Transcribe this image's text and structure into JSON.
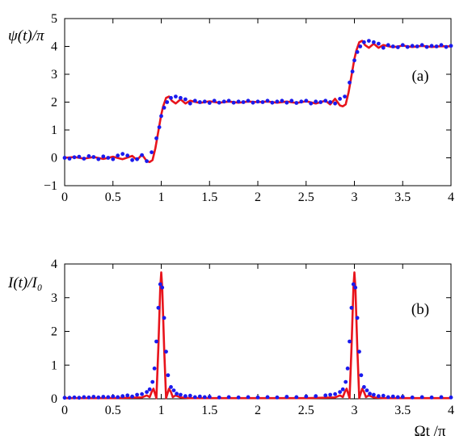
{
  "chart_data": [
    {
      "panel": "a",
      "type": "line",
      "panel_label": "(a)",
      "ylabel": "ψ(t)/π",
      "xlabel": "",
      "xlim": [
        0,
        4
      ],
      "ylim": [
        -1,
        5
      ],
      "xticks": [
        "0",
        "0.5",
        "1",
        "1.5",
        "2",
        "2.5",
        "3",
        "3.5",
        "4"
      ],
      "yticks": [
        "−1",
        "0",
        "1",
        "2",
        "3",
        "4",
        "5"
      ],
      "grid": false,
      "series": [
        {
          "style": "line",
          "color": "#e8141c",
          "x": [
            0,
            0.1,
            0.2,
            0.3,
            0.4,
            0.5,
            0.6,
            0.7,
            0.75,
            0.8,
            0.85,
            0.88,
            0.91,
            0.94,
            0.97,
            1.0,
            1.02,
            1.05,
            1.08,
            1.11,
            1.15,
            1.2,
            1.25,
            1.3,
            1.4,
            1.5,
            1.6,
            1.7,
            1.8,
            1.9,
            2.0,
            2.1,
            2.2,
            2.3,
            2.4,
            2.5,
            2.6,
            2.7,
            2.75,
            2.8,
            2.85,
            2.88,
            2.91,
            2.94,
            2.97,
            3.0,
            3.02,
            3.05,
            3.08,
            3.11,
            3.15,
            3.2,
            3.25,
            3.3,
            3.4,
            3.5,
            3.6,
            3.7,
            3.8,
            3.9,
            4.0
          ],
          "y": [
            0,
            0.03,
            -0.03,
            0.03,
            -0.04,
            0.04,
            -0.05,
            0.07,
            -0.08,
            0.12,
            -0.12,
            -0.15,
            -0.08,
            0.35,
            0.95,
            1.55,
            1.85,
            2.15,
            2.2,
            2.05,
            1.95,
            2.1,
            1.95,
            2.05,
            1.97,
            2.03,
            1.98,
            2.02,
            1.98,
            2.02,
            2.0,
            2.02,
            1.98,
            2.02,
            1.97,
            2.03,
            1.95,
            2.05,
            1.92,
            2.12,
            1.88,
            1.85,
            1.92,
            2.35,
            2.95,
            3.55,
            3.85,
            4.15,
            4.2,
            4.05,
            3.95,
            4.1,
            3.95,
            4.05,
            3.97,
            4.03,
            3.98,
            4.02,
            3.98,
            4.01,
            4.0
          ]
        },
        {
          "style": "dots",
          "color": "#1a1aee",
          "x": [
            0,
            0.05,
            0.1,
            0.15,
            0.2,
            0.25,
            0.3,
            0.35,
            0.4,
            0.45,
            0.5,
            0.55,
            0.6,
            0.65,
            0.7,
            0.75,
            0.8,
            0.85,
            0.9,
            0.95,
            0.98,
            1.0,
            1.03,
            1.06,
            1.1,
            1.15,
            1.2,
            1.25,
            1.3,
            1.35,
            1.4,
            1.45,
            1.5,
            1.55,
            1.6,
            1.65,
            1.7,
            1.75,
            1.8,
            1.85,
            1.9,
            1.95,
            2.0,
            2.05,
            2.1,
            2.15,
            2.2,
            2.25,
            2.3,
            2.35,
            2.4,
            2.45,
            2.5,
            2.55,
            2.6,
            2.65,
            2.7,
            2.75,
            2.8,
            2.85,
            2.9,
            2.95,
            2.98,
            3.0,
            3.03,
            3.06,
            3.1,
            3.15,
            3.2,
            3.25,
            3.3,
            3.35,
            3.4,
            3.45,
            3.5,
            3.55,
            3.6,
            3.65,
            3.7,
            3.75,
            3.8,
            3.85,
            3.9,
            3.95,
            4.0
          ],
          "y": [
            0,
            -0.03,
            0.02,
            0.04,
            -0.03,
            0.06,
            0.03,
            -0.05,
            0.05,
            0,
            -0.05,
            0.08,
            0.14,
            0.08,
            -0.08,
            -0.05,
            0.1,
            -0.12,
            0.2,
            0.7,
            1.1,
            1.5,
            1.8,
            2.0,
            2.15,
            2.2,
            2.15,
            2.1,
            1.95,
            2.05,
            2.0,
            2.02,
            1.97,
            2.05,
            1.98,
            2.02,
            2.05,
            1.98,
            2.02,
            2.0,
            2.05,
            1.98,
            2.02,
            2.0,
            2.05,
            1.98,
            2.02,
            2.05,
            1.98,
            2.05,
            1.97,
            2.02,
            2.05,
            1.95,
            2.02,
            2.0,
            2.05,
            2.0,
            1.95,
            2.12,
            2.2,
            2.7,
            3.1,
            3.5,
            3.8,
            4.0,
            4.15,
            4.2,
            4.15,
            4.1,
            3.95,
            4.05,
            4.0,
            3.97,
            4.05,
            3.98,
            4.02,
            4.0,
            4.05,
            3.98,
            4.02,
            4.0,
            4.05,
            3.98,
            4.02
          ]
        }
      ]
    },
    {
      "panel": "b",
      "type": "line",
      "panel_label": "(b)",
      "ylabel": "I(t)/I₀",
      "xlabel": "Ωt /π",
      "xlim": [
        0,
        4
      ],
      "ylim": [
        0,
        4
      ],
      "xticks": [
        "0",
        "0.5",
        "1",
        "1.5",
        "2",
        "2.5",
        "3",
        "3.5",
        "4"
      ],
      "yticks": [
        "0",
        "1",
        "2",
        "3",
        "4"
      ],
      "grid": false,
      "series": [
        {
          "style": "line",
          "color": "#e8141c",
          "x": [
            0,
            0.5,
            0.8,
            0.85,
            0.88,
            0.9,
            0.92,
            0.95,
            0.97,
            0.99,
            1.0,
            1.01,
            1.03,
            1.05,
            1.08,
            1.1,
            1.12,
            1.15,
            1.2,
            1.3,
            1.5,
            2.0,
            2.5,
            2.8,
            2.85,
            2.88,
            2.9,
            2.92,
            2.95,
            2.97,
            2.99,
            3.0,
            3.01,
            3.03,
            3.05,
            3.08,
            3.1,
            3.12,
            3.15,
            3.2,
            3.3,
            3.5,
            4.0
          ],
          "y": [
            0.02,
            0.02,
            0.04,
            0.1,
            0.05,
            0.2,
            0.3,
            0.02,
            1.5,
            3.3,
            3.75,
            3.3,
            1.5,
            0.02,
            0.3,
            0.2,
            0.05,
            0.1,
            0.04,
            0.02,
            0.02,
            0.02,
            0.02,
            0.04,
            0.1,
            0.05,
            0.2,
            0.3,
            0.02,
            1.5,
            3.3,
            3.75,
            3.3,
            1.5,
            0.02,
            0.3,
            0.2,
            0.05,
            0.1,
            0.04,
            0.02,
            0.02,
            0.02
          ]
        },
        {
          "style": "dots",
          "color": "#1a1aee",
          "x": [
            0,
            0.05,
            0.1,
            0.15,
            0.2,
            0.25,
            0.3,
            0.35,
            0.4,
            0.45,
            0.5,
            0.55,
            0.6,
            0.65,
            0.7,
            0.75,
            0.8,
            0.85,
            0.88,
            0.91,
            0.93,
            0.95,
            0.97,
            0.99,
            1.01,
            1.03,
            1.05,
            1.07,
            1.1,
            1.13,
            1.16,
            1.2,
            1.25,
            1.3,
            1.35,
            1.4,
            1.45,
            1.5,
            1.6,
            1.7,
            1.8,
            1.9,
            2.0,
            2.1,
            2.2,
            2.3,
            2.4,
            2.5,
            2.6,
            2.7,
            2.75,
            2.8,
            2.85,
            2.88,
            2.91,
            2.93,
            2.95,
            2.97,
            2.99,
            3.01,
            3.03,
            3.05,
            3.07,
            3.1,
            3.13,
            3.16,
            3.2,
            3.25,
            3.3,
            3.35,
            3.4,
            3.45,
            3.5,
            3.6,
            3.7,
            3.8,
            3.9,
            4.0
          ],
          "y": [
            0.03,
            0.03,
            0.04,
            0.03,
            0.05,
            0.04,
            0.06,
            0.04,
            0.06,
            0.05,
            0.07,
            0.05,
            0.08,
            0.1,
            0.07,
            0.12,
            0.14,
            0.2,
            0.28,
            0.5,
            0.9,
            1.7,
            2.7,
            3.4,
            3.3,
            2.4,
            1.4,
            0.7,
            0.35,
            0.25,
            0.15,
            0.12,
            0.08,
            0.09,
            0.05,
            0.07,
            0.05,
            0.06,
            0.04,
            0.05,
            0.04,
            0.05,
            0.04,
            0.05,
            0.04,
            0.06,
            0.05,
            0.07,
            0.08,
            0.1,
            0.12,
            0.14,
            0.2,
            0.28,
            0.5,
            0.9,
            1.7,
            2.7,
            3.4,
            3.3,
            2.4,
            1.4,
            0.7,
            0.35,
            0.25,
            0.15,
            0.12,
            0.08,
            0.09,
            0.05,
            0.07,
            0.05,
            0.06,
            0.04,
            0.05,
            0.04,
            0.05,
            0.04
          ]
        }
      ]
    }
  ]
}
